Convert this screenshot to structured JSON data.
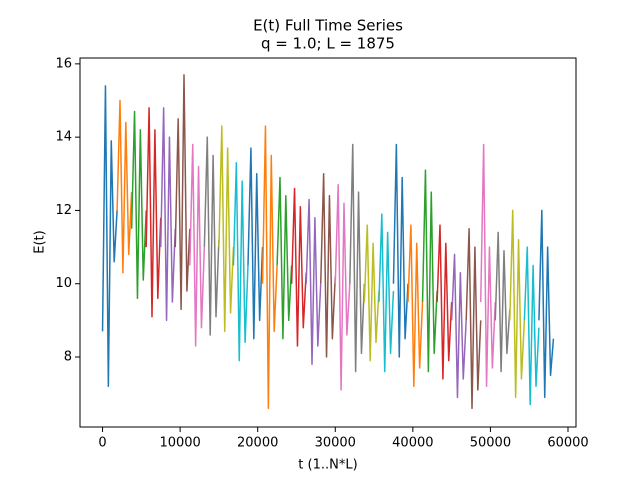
{
  "chart_data": {
    "type": "line",
    "title": "E(t) Full Time Series",
    "subtitle": "q = 1.0; L = 1875",
    "x_label": "t (1..N*L)",
    "y_label": "E(t)",
    "xlim": [
      -2906,
      61031
    ],
    "ylim": [
      6.09,
      16.16
    ],
    "xticks": [
      0,
      10000,
      20000,
      30000,
      40000,
      50000,
      60000
    ],
    "yticks": [
      8,
      10,
      12,
      14,
      16
    ],
    "series": [
      {
        "color": "#1f77b4",
        "x": [
          0,
          375,
          750,
          1125,
          1500,
          1874
        ],
        "values": [
          8.7,
          15.4,
          7.2,
          13.9,
          10.6,
          12.0
        ]
      },
      {
        "color": "#ff7f0e",
        "x": [
          1875,
          2250,
          2625,
          3000,
          3375,
          3749
        ],
        "values": [
          12,
          15.0,
          10.3,
          14.4,
          10.8,
          12.5
        ]
      },
      {
        "color": "#2ca02c",
        "x": [
          3750,
          4125,
          4500,
          4875,
          5250,
          5624
        ],
        "values": [
          11.5,
          14.7,
          9.6,
          14.2,
          10.1,
          12.0
        ]
      },
      {
        "color": "#d62728",
        "x": [
          5625,
          6000,
          6375,
          6750,
          7125,
          7499
        ],
        "values": [
          11,
          14.8,
          9.1,
          14.2,
          9.6,
          11.8
        ]
      },
      {
        "color": "#9467bd",
        "x": [
          7500,
          7875,
          8250,
          8625,
          9000,
          9374
        ],
        "values": [
          11,
          14.8,
          9.0,
          14.0,
          9.5,
          11.5
        ]
      },
      {
        "color": "#8c564b",
        "x": [
          9375,
          9750,
          10125,
          10500,
          10875,
          11249
        ],
        "values": [
          11,
          14.5,
          9.3,
          15.7,
          9.8,
          11.5
        ]
      },
      {
        "color": "#e377c2",
        "x": [
          11250,
          11625,
          12000,
          12375,
          12750,
          13124
        ],
        "values": [
          10.5,
          13.8,
          8.3,
          13.2,
          8.8,
          11.0
        ]
      },
      {
        "color": "#7f7f7f",
        "x": [
          13125,
          13500,
          13875,
          14250,
          14625,
          14999
        ],
        "values": [
          11,
          14.0,
          8.6,
          13.5,
          9.1,
          11.2
        ]
      },
      {
        "color": "#bcbd22",
        "x": [
          15000,
          15375,
          15750,
          16125,
          16500,
          16874
        ],
        "values": [
          11,
          14.3,
          8.7,
          13.7,
          9.2,
          11.0
        ]
      },
      {
        "color": "#17becf",
        "x": [
          16875,
          17250,
          17625,
          18000,
          18375,
          18749
        ],
        "values": [
          10.5,
          13.3,
          7.9,
          12.8,
          8.4,
          10.5
        ]
      },
      {
        "color": "#1f77b4",
        "x": [
          18750,
          19125,
          19500,
          19875,
          20250,
          20624
        ],
        "values": [
          10.5,
          13.7,
          8.5,
          13.0,
          9.0,
          11.0
        ]
      },
      {
        "color": "#ff7f0e",
        "x": [
          20625,
          21000,
          21375,
          21750,
          22125,
          22499
        ],
        "values": [
          10,
          14.3,
          6.6,
          13.5,
          8.7,
          10.5
        ]
      },
      {
        "color": "#2ca02c",
        "x": [
          22500,
          22875,
          23250,
          23625,
          24000,
          24374
        ],
        "values": [
          10.5,
          12.9,
          8.5,
          12.4,
          9.0,
          10.5
        ]
      },
      {
        "color": "#d62728",
        "x": [
          24375,
          24750,
          25125,
          25500,
          25875,
          26249
        ],
        "values": [
          10,
          12.6,
          8.3,
          12.1,
          8.8,
          10.3
        ]
      },
      {
        "color": "#9467bd",
        "x": [
          26250,
          26625,
          27000,
          27375,
          27750,
          28124
        ],
        "values": [
          10,
          12.3,
          7.8,
          11.8,
          8.3,
          10.0
        ]
      },
      {
        "color": "#8c564b",
        "x": [
          28125,
          28500,
          28875,
          29250,
          29625,
          29999
        ],
        "values": [
          10,
          13.0,
          8.0,
          12.4,
          8.5,
          10.2
        ]
      },
      {
        "color": "#e377c2",
        "x": [
          30000,
          30375,
          30750,
          31125,
          31500,
          31874
        ],
        "values": [
          10,
          12.7,
          7.1,
          12.2,
          8.6,
          10.0
        ]
      },
      {
        "color": "#7f7f7f",
        "x": [
          31875,
          32250,
          32625,
          33000,
          33375,
          33749
        ],
        "values": [
          10,
          13.8,
          7.6,
          12.5,
          8.1,
          10.0
        ]
      },
      {
        "color": "#bcbd22",
        "x": [
          33750,
          34125,
          34500,
          34875,
          35250,
          35624
        ],
        "values": [
          9.5,
          11.6,
          7.9,
          11.1,
          8.4,
          9.8
        ]
      },
      {
        "color": "#17becf",
        "x": [
          35625,
          36000,
          36375,
          36750,
          37125,
          37499
        ],
        "values": [
          9.5,
          11.9,
          7.6,
          11.4,
          8.1,
          9.8
        ]
      },
      {
        "color": "#1f77b4",
        "x": [
          37500,
          37875,
          38250,
          38625,
          39000,
          39374
        ],
        "values": [
          10,
          13.8,
          8.0,
          12.9,
          8.5,
          10.0
        ]
      },
      {
        "color": "#ff7f0e",
        "x": [
          39375,
          39750,
          40125,
          40500,
          40875,
          41249
        ],
        "values": [
          9.5,
          11.6,
          7.2,
          11.1,
          7.7,
          9.5
        ]
      },
      {
        "color": "#2ca02c",
        "x": [
          41250,
          41625,
          42000,
          42375,
          42750,
          43124
        ],
        "values": [
          9.5,
          13.1,
          7.6,
          12.5,
          8.1,
          9.8
        ]
      },
      {
        "color": "#d62728",
        "x": [
          43125,
          43500,
          43875,
          44250,
          44625,
          44999
        ],
        "values": [
          9.5,
          11.6,
          7.4,
          11.1,
          7.9,
          9.5
        ]
      },
      {
        "color": "#9467bd",
        "x": [
          45000,
          45375,
          45750,
          46125,
          46500,
          46874
        ],
        "values": [
          9,
          10.8,
          6.9,
          10.3,
          7.4,
          9.0
        ]
      },
      {
        "color": "#8c564b",
        "x": [
          46875,
          47250,
          47625,
          48000,
          48375,
          48749
        ],
        "values": [
          9,
          11.5,
          6.6,
          11.0,
          7.1,
          9.0
        ]
      },
      {
        "color": "#e377c2",
        "x": [
          48750,
          49125,
          49500,
          49875,
          50250,
          50624
        ],
        "values": [
          9.5,
          13.8,
          7.2,
          11.0,
          7.7,
          9.5
        ]
      },
      {
        "color": "#7f7f7f",
        "x": [
          50625,
          51000,
          51375,
          51750,
          52125,
          52499
        ],
        "values": [
          9,
          11.4,
          7.6,
          10.9,
          8.1,
          9.3
        ]
      },
      {
        "color": "#bcbd22",
        "x": [
          52500,
          52875,
          53250,
          53625,
          54000,
          54374
        ],
        "values": [
          9,
          12.0,
          6.9,
          11.2,
          7.4,
          9.0
        ]
      },
      {
        "color": "#17becf",
        "x": [
          54375,
          54750,
          55125,
          55500,
          55875,
          56249
        ],
        "values": [
          9,
          11.0,
          6.7,
          10.5,
          7.2,
          8.8
        ]
      },
      {
        "color": "#1f77b4",
        "x": [
          56250,
          56625,
          57000,
          57375,
          57750,
          58124
        ],
        "values": [
          9,
          12.0,
          6.9,
          11.0,
          7.5,
          8.5
        ]
      }
    ]
  }
}
